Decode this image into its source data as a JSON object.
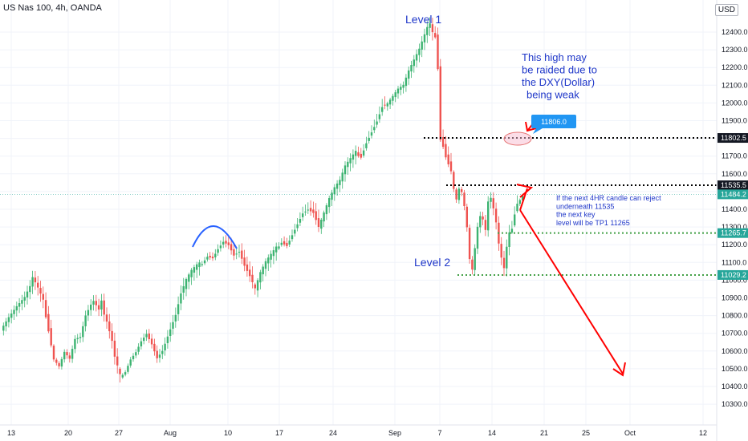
{
  "header": {
    "title": "US Nas 100, 4h, OANDA",
    "currency": "USD"
  },
  "colors": {
    "up": "#26a69a",
    "down": "#ef5350",
    "up_bright": "#3cb371",
    "level_black": "#000000",
    "level_green": "#43a047",
    "arrow_red": "#ff0000",
    "text_blue": "#1f37c9",
    "badge_blue": "#2196f3",
    "badge_green": "#26a69a",
    "badge_black": "#131722"
  },
  "chart_data": {
    "type": "candlestick",
    "symbol": "US Nas 100",
    "timeframe": "4h",
    "source": "OANDA",
    "ylim": [
      10300,
      12500
    ],
    "y_ticks": [
      "12400.0",
      "12300.0",
      "12200.0",
      "12100.0",
      "12000.0",
      "11900.0",
      "11800.0",
      "11700.0",
      "11600.0",
      "11500.0",
      "11400.0",
      "11300.0",
      "11200.0",
      "11100.0",
      "11000.0",
      "10900.0",
      "10800.0",
      "10700.0",
      "10600.0",
      "10500.0",
      "10400.0",
      "10300.0"
    ],
    "x_ticks": [
      "13",
      "20",
      "27",
      "Aug",
      "10",
      "17",
      "24",
      "Sep",
      "7",
      "14",
      "21",
      "25",
      "Oct",
      "12"
    ],
    "price_labels": [
      {
        "value": 11802.5,
        "text": "11802.5",
        "style": "black"
      },
      {
        "value": 11535.5,
        "text": "11535.5",
        "style": "black"
      },
      {
        "value": 11484.2,
        "text": "11484.2",
        "style": "green"
      },
      {
        "value": 11265.7,
        "text": "11265.7",
        "style": "green"
      },
      {
        "value": 11029.2,
        "text": "11029.2",
        "style": "green"
      }
    ],
    "horizontal_levels": [
      {
        "value": 11802.5,
        "color": "black"
      },
      {
        "value": 11535.5,
        "color": "black"
      },
      {
        "value": 11265.7,
        "color": "green"
      },
      {
        "value": 11029.2,
        "color": "green"
      }
    ],
    "current_price": 11484.2,
    "callout_value": "11806.0",
    "annotations": {
      "level1": "Level 1",
      "level2": "Level 2",
      "note_line1": "This high may",
      "note_line2": "be raided due to",
      "note_line3": "the DXY(Dollar)",
      "note_line4": "being weak",
      "plan_line1": "If the next 4HR candle can reject",
      "plan_line2": "underneath 11535",
      "plan_line3": "the next key",
      "plan_line4": "level will be TP1 11265"
    },
    "path_points": [
      [
        0,
        10720
      ],
      [
        3,
        10790
      ],
      [
        6,
        10850
      ],
      [
        9,
        10900
      ],
      [
        11,
        10960
      ],
      [
        12,
        11010
      ],
      [
        14,
        10950
      ],
      [
        16,
        10880
      ],
      [
        18,
        10720
      ],
      [
        20,
        10560
      ],
      [
        22,
        10520
      ],
      [
        24,
        10600
      ],
      [
        26,
        10560
      ],
      [
        28,
        10670
      ],
      [
        30,
        10680
      ],
      [
        32,
        10800
      ],
      [
        34,
        10860
      ],
      [
        35,
        10880
      ],
      [
        37,
        10830
      ],
      [
        38,
        10880
      ],
      [
        39,
        10800
      ],
      [
        40,
        10760
      ],
      [
        42,
        10650
      ],
      [
        43,
        10560
      ],
      [
        45,
        10460
      ],
      [
        47,
        10490
      ],
      [
        49,
        10560
      ],
      [
        51,
        10600
      ],
      [
        53,
        10660
      ],
      [
        55,
        10700
      ],
      [
        57,
        10640
      ],
      [
        59,
        10560
      ],
      [
        61,
        10600
      ],
      [
        64,
        10720
      ],
      [
        66,
        10800
      ],
      [
        68,
        10920
      ],
      [
        70,
        11000
      ],
      [
        72,
        11050
      ],
      [
        74,
        11080
      ],
      [
        76,
        11100
      ],
      [
        78,
        11140
      ],
      [
        80,
        11130
      ],
      [
        82,
        11180
      ],
      [
        84,
        11220
      ],
      [
        86,
        11200
      ],
      [
        88,
        11140
      ],
      [
        90,
        11160
      ],
      [
        92,
        11080
      ],
      [
        94,
        11020
      ],
      [
        96,
        10950
      ],
      [
        98,
        11040
      ],
      [
        100,
        11100
      ],
      [
        102,
        11140
      ],
      [
        104,
        11180
      ],
      [
        106,
        11220
      ],
      [
        108,
        11200
      ],
      [
        110,
        11260
      ],
      [
        112,
        11320
      ],
      [
        114,
        11380
      ],
      [
        116,
        11400
      ],
      [
        118,
        11380
      ],
      [
        120,
        11300
      ],
      [
        122,
        11380
      ],
      [
        124,
        11460
      ],
      [
        126,
        11520
      ],
      [
        128,
        11560
      ],
      [
        130,
        11640
      ],
      [
        132,
        11680
      ],
      [
        134,
        11720
      ],
      [
        136,
        11700
      ],
      [
        138,
        11780
      ],
      [
        140,
        11840
      ],
      [
        142,
        11900
      ],
      [
        144,
        11980
      ],
      [
        146,
        12000
      ],
      [
        148,
        12040
      ],
      [
        150,
        12080
      ],
      [
        152,
        12100
      ],
      [
        154,
        12180
      ],
      [
        156,
        12240
      ],
      [
        158,
        12300
      ],
      [
        160,
        12380
      ],
      [
        161,
        12420
      ],
      [
        162,
        12440
      ],
      [
        163,
        12390
      ],
      [
        164,
        12380
      ],
      [
        165,
        12200
      ],
      [
        166,
        11800
      ],
      [
        167,
        11760
      ],
      [
        168,
        11700
      ],
      [
        170,
        11620
      ],
      [
        171,
        11520
      ],
      [
        172,
        11460
      ],
      [
        173,
        11520
      ],
      [
        174,
        11500
      ],
      [
        175,
        11420
      ],
      [
        176,
        11300
      ],
      [
        177,
        11120
      ],
      [
        178,
        11060
      ],
      [
        179,
        11180
      ],
      [
        180,
        11300
      ],
      [
        181,
        11360
      ],
      [
        182,
        11340
      ],
      [
        183,
        11280
      ],
      [
        184,
        11440
      ],
      [
        185,
        11460
      ],
      [
        186,
        11400
      ],
      [
        187,
        11320
      ],
      [
        188,
        11200
      ],
      [
        189,
        11120
      ],
      [
        190,
        11060
      ],
      [
        191,
        11180
      ],
      [
        192,
        11260
      ],
      [
        193,
        11300
      ],
      [
        194,
        11380
      ],
      [
        195,
        11440
      ],
      [
        196,
        11460
      ],
      [
        197,
        11484
      ]
    ],
    "arcs": [
      {
        "type": "rounded-top",
        "color": "#2962ff"
      }
    ],
    "arrows": [
      {
        "from": [
          199,
          11535
        ],
        "to": [
          240,
          10500
        ],
        "color": "red"
      }
    ]
  }
}
